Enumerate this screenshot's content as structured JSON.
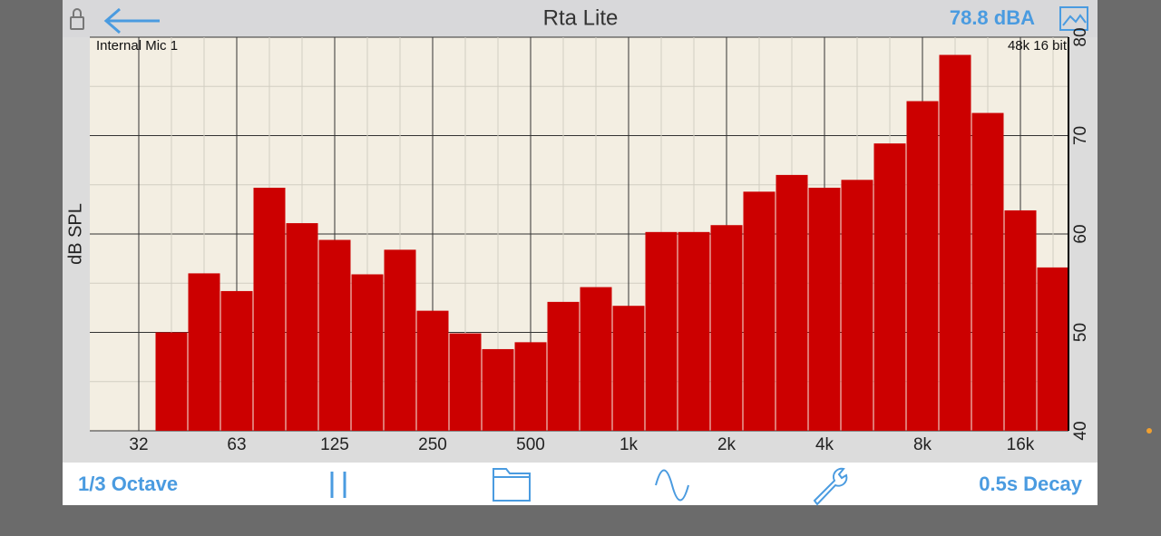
{
  "app": {
    "title": "Rta Lite",
    "level": "78.8 dBA",
    "input": "Internal Mic 1",
    "format": "48k 16 bit",
    "toolbar": {
      "resolution": "1/3 Octave",
      "decay": "0.5s Decay"
    }
  },
  "chart_data": {
    "type": "bar",
    "ylabel": "dB SPL",
    "color": "#cc0000",
    "categories": [
      "32",
      null,
      null,
      "63",
      null,
      null,
      "125",
      null,
      null,
      "250",
      null,
      null,
      "500",
      null,
      null,
      "1k",
      null,
      null,
      "2k",
      null,
      null,
      "4k",
      null,
      null,
      "8k",
      null,
      null,
      "16k",
      null
    ],
    "values": [
      null,
      50,
      56,
      54.2,
      64.7,
      61.1,
      59.4,
      55.9,
      58.4,
      52.2,
      49.9,
      48.3,
      49,
      53.1,
      54.6,
      52.7,
      60.2,
      60.2,
      60.9,
      64.3,
      66,
      64.7,
      65.5,
      69.2,
      73.5,
      78.2,
      72.3,
      62.4,
      56.6
    ],
    "ylim": [
      40,
      80
    ],
    "yticks": [
      40,
      50,
      60,
      70,
      80
    ],
    "minor_yticks": [
      45,
      55,
      65,
      75
    ],
    "grid": true
  }
}
